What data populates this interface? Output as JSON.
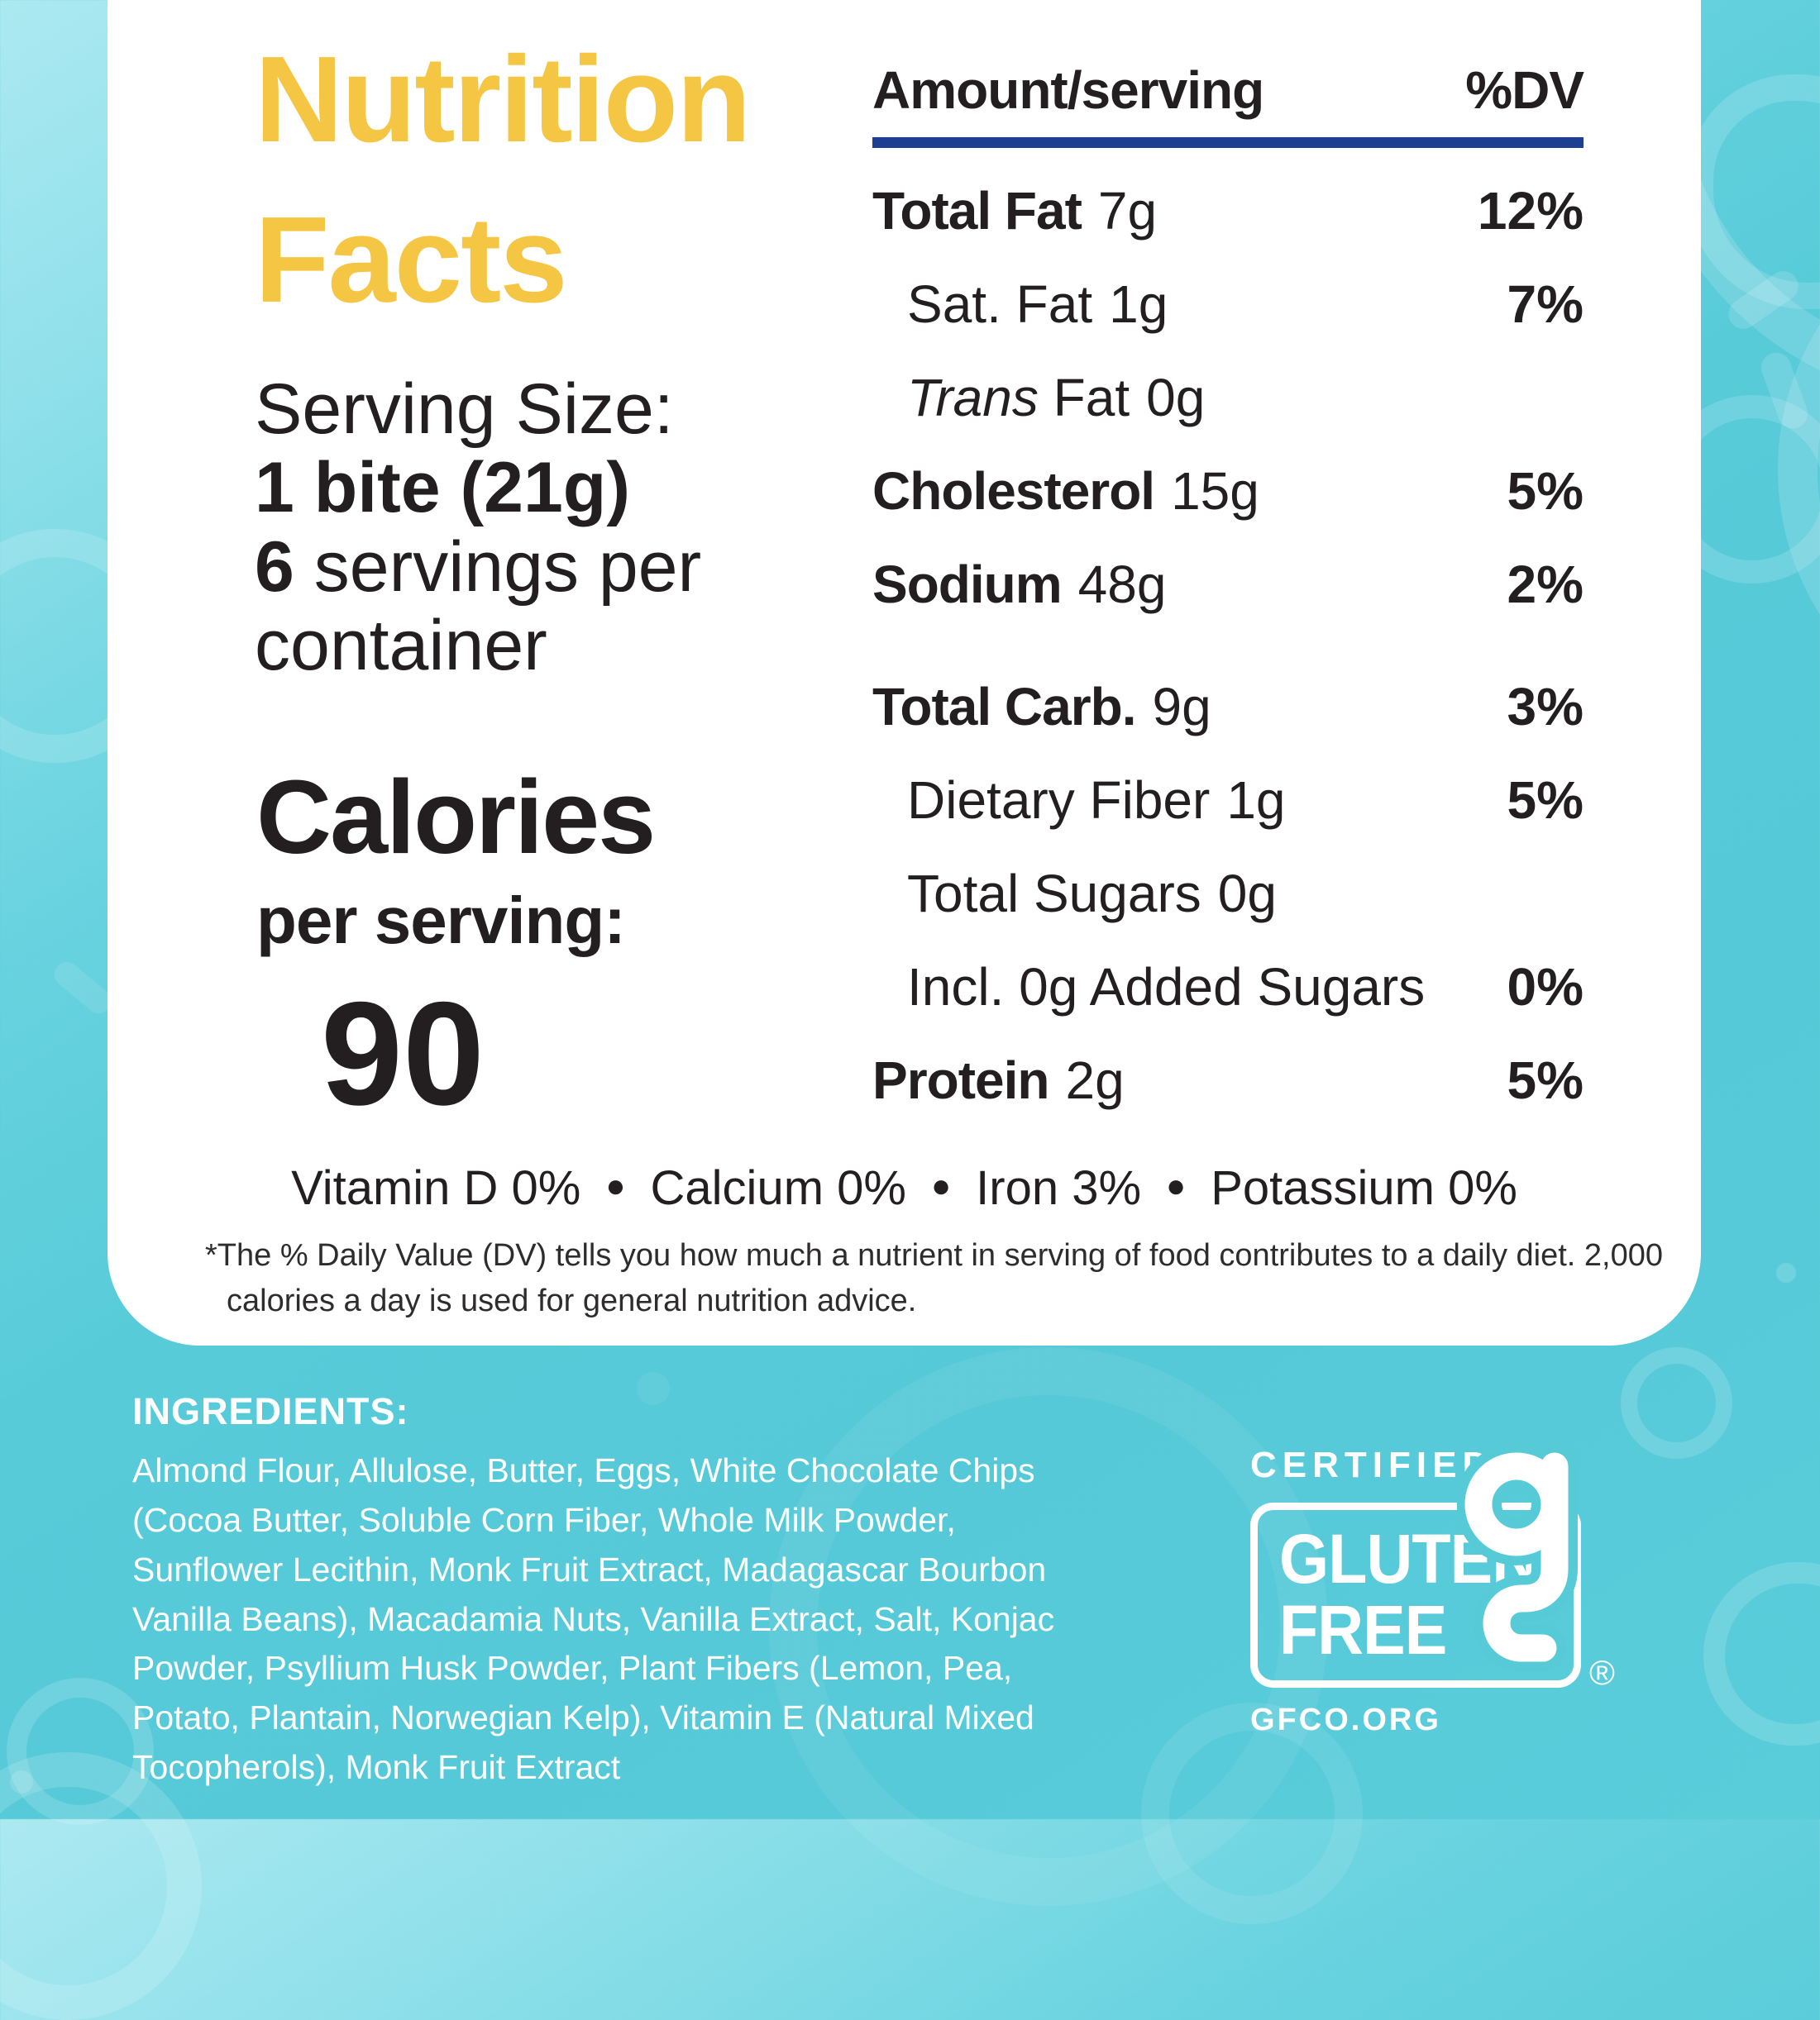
{
  "panel": {
    "title": "Nutrition Facts",
    "serving": {
      "label": "Serving Size:",
      "size": "1 bite (21g)",
      "qty": "6",
      "rest": " servings per container"
    },
    "calories": {
      "word": "Calories",
      "sub": "per serving:",
      "value": "90"
    },
    "table": {
      "header": {
        "amount": "Amount/serving",
        "dv": "%DV"
      },
      "rows": [
        {
          "label": "Total Fat",
          "amount": "7g",
          "dv": "12%",
          "bold": true,
          "indent": 0
        },
        {
          "label": "Sat. Fat",
          "amount": "1g",
          "dv": "7%",
          "bold": false,
          "indent": 1
        },
        {
          "prefix": "Trans",
          "label": "Fat",
          "amount": "0g",
          "dv": "",
          "bold": false,
          "indent": 1
        },
        {
          "label": "Cholesterol",
          "amount": "15g",
          "dv": "5%",
          "bold": true,
          "indent": 0
        },
        {
          "label": "Sodium",
          "amount": "48g",
          "dv": "2%",
          "bold": true,
          "indent": 0
        },
        {
          "label": "Total Carb.",
          "amount": "9g",
          "dv": "3%",
          "bold": true,
          "indent": 0,
          "gap": true
        },
        {
          "label": "Dietary Fiber",
          "amount": "1g",
          "dv": "5%",
          "bold": false,
          "indent": 1
        },
        {
          "label": "Total Sugars",
          "amount": "0g",
          "dv": "",
          "bold": false,
          "indent": 1
        },
        {
          "label": "Incl. 0g Added Sugars",
          "amount": "",
          "dv": "0%",
          "bold": false,
          "indent": 1
        },
        {
          "label": "Protein",
          "amount": "2g",
          "dv": "5%",
          "bold": true,
          "indent": 0
        }
      ]
    },
    "micros": [
      {
        "label": "Vitamin D",
        "value": "0%"
      },
      {
        "label": "Calcium",
        "value": "0%"
      },
      {
        "label": "Iron",
        "value": "3%"
      },
      {
        "label": "Potassium",
        "value": "0%"
      }
    ],
    "footnote": "*The % Daily Value (DV) tells you how much a nutrient in serving of food contributes to a daily diet. 2,000 calories a day is used for general nutrition advice."
  },
  "ingredients": {
    "heading": "INGREDIENTS:",
    "text": "Almond Flour, Allulose, Butter, Eggs, White Chocolate Chips (Cocoa Butter, Soluble Corn Fiber, Whole Milk Powder, Sunflower Lecithin, Monk Fruit Extract, Madagascar Bourbon Vanilla Beans), Macadamia Nuts, Vanilla Extract, Salt, Konjac Powder, Psyllium Husk Powder, Plant Fibers (Lemon, Pea, Potato, Plantain, Norwegian Kelp), Vitamin E (Natural Mixed Tocopherols), Monk Fruit Extract"
  },
  "badge": {
    "certified": "CERTIFIED",
    "line1": "GLUTEN",
    "line2": "FREE",
    "registered": "®",
    "url": "GFCO.ORG"
  },
  "colors": {
    "accent_yellow": "#F5C544",
    "rule_navy": "#1C3F92",
    "background_teal": "#55C9D8",
    "text_dark": "#231F20",
    "panel_white": "#FFFFFF"
  }
}
